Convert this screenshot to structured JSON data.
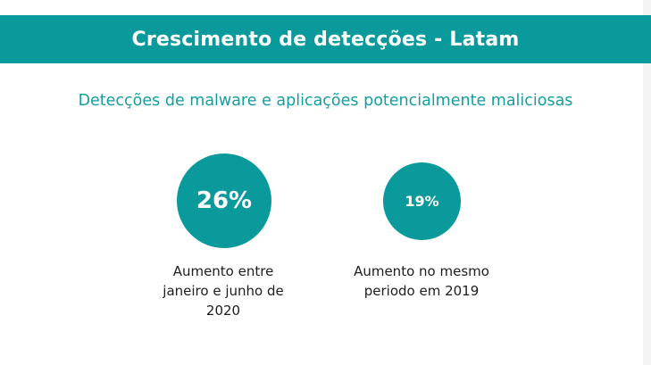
{
  "header": {
    "title": "Crescimento de detecções - Latam"
  },
  "subtitle": "Detecções de malware e aplicações potencialmente maliciosas",
  "stats": [
    {
      "value": "26%",
      "caption_lines": [
        "Aumento entre",
        "janeiro e junho de",
        "2020"
      ]
    },
    {
      "value": "19%",
      "caption_lines": [
        "Aumento no mesmo",
        "periodo em 2019"
      ]
    }
  ],
  "colors": {
    "accent": "#0b9a9c",
    "subtitle": "#139ea0",
    "text": "#1d1d1d"
  }
}
